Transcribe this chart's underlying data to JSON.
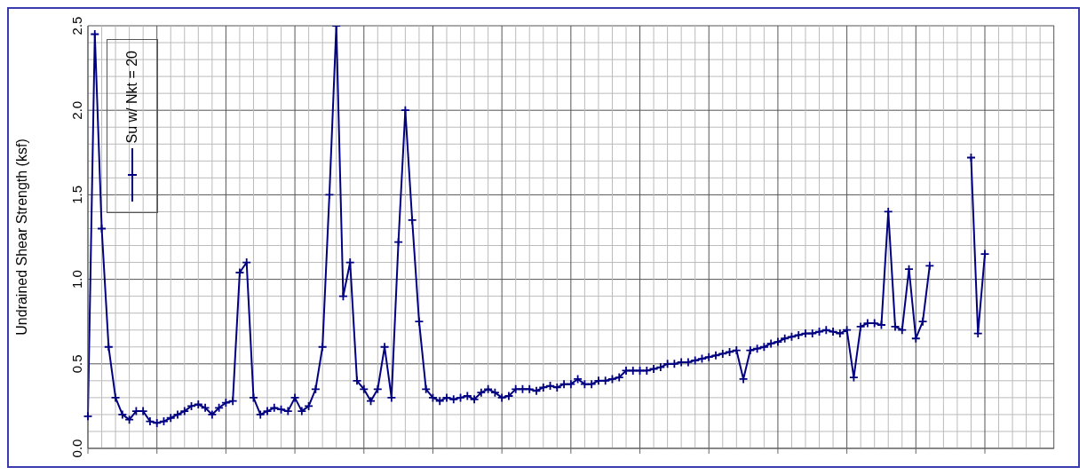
{
  "chart_data": {
    "type": "line",
    "ylabel": "Undrained Shear Strength (ksf)",
    "categories": [
      null,
      null,
      null,
      null,
      null,
      null,
      null,
      null,
      null,
      null,
      null,
      null,
      null,
      null,
      null,
      null,
      null,
      null,
      null,
      null,
      null,
      null,
      null,
      null,
      null,
      null,
      null,
      null,
      null,
      null,
      null,
      null,
      null,
      null,
      null,
      null,
      null,
      null,
      null,
      null,
      null,
      null,
      null,
      null,
      null,
      null,
      null,
      null,
      null,
      null,
      null,
      null,
      null,
      null,
      null,
      null,
      null,
      null,
      null,
      null,
      null,
      null,
      null,
      null,
      null,
      null,
      null,
      null,
      null,
      null,
      null,
      null,
      null,
      null,
      null,
      null,
      null,
      null,
      null,
      null,
      null,
      null,
      null,
      null,
      null,
      null,
      null,
      null,
      null,
      null,
      null,
      null,
      null,
      null,
      null,
      null,
      null,
      null,
      null,
      null,
      null,
      null,
      null,
      null,
      null,
      null,
      null,
      null,
      null,
      null,
      null,
      null,
      null,
      null,
      null,
      null,
      null,
      null,
      null,
      null,
      null,
      null,
      null,
      null,
      null,
      null,
      null,
      null,
      null,
      null,
      null
    ],
    "series": [
      {
        "name": "Su w/ Nkt = 20",
        "color": "#000080",
        "values": [
          0.19,
          2.45,
          1.3,
          0.6,
          0.3,
          0.2,
          0.17,
          0.22,
          0.22,
          0.16,
          0.15,
          0.16,
          0.18,
          0.2,
          0.22,
          0.25,
          0.26,
          0.24,
          0.2,
          0.24,
          0.27,
          0.28,
          1.04,
          1.1,
          0.3,
          0.2,
          0.22,
          0.24,
          0.23,
          0.22,
          0.3,
          0.22,
          0.25,
          0.35,
          0.6,
          1.5,
          2.5,
          0.9,
          1.1,
          0.4,
          0.35,
          0.28,
          0.35,
          0.6,
          0.3,
          1.22,
          2.0,
          1.35,
          0.75,
          0.35,
          0.3,
          0.28,
          0.3,
          0.29,
          0.3,
          0.31,
          0.29,
          0.33,
          0.35,
          0.33,
          0.3,
          0.31,
          0.35,
          0.35,
          0.35,
          0.34,
          0.36,
          0.37,
          0.36,
          0.38,
          0.38,
          0.41,
          0.38,
          0.38,
          0.4,
          0.4,
          0.41,
          0.42,
          0.46,
          0.46,
          0.46,
          0.46,
          0.47,
          0.48,
          0.5,
          0.5,
          0.51,
          0.51,
          0.52,
          0.53,
          0.54,
          0.55,
          0.56,
          0.57,
          0.58,
          0.41,
          0.58,
          0.59,
          0.6,
          0.62,
          0.63,
          0.65,
          0.66,
          0.67,
          0.68,
          0.68,
          0.69,
          0.7,
          0.69,
          0.68,
          0.7,
          0.42,
          0.72,
          0.74,
          0.74,
          0.73,
          1.4,
          0.72,
          0.7,
          1.06,
          0.65,
          0.75,
          1.08,
          null,
          null,
          null,
          null,
          null,
          null,
          null,
          null
        ]
      },
      {
        "color": "#000080",
        "values": [
          null,
          null,
          null,
          null,
          null,
          null,
          null,
          null,
          null,
          null,
          null,
          null,
          null,
          null,
          null,
          null,
          null,
          null,
          null,
          null,
          null,
          null,
          null,
          null,
          null,
          null,
          null,
          null,
          null,
          null,
          null,
          null,
          null,
          null,
          null,
          null,
          null,
          null,
          null,
          null,
          null,
          null,
          null,
          null,
          null,
          null,
          null,
          null,
          null,
          null,
          null,
          null,
          null,
          null,
          null,
          null,
          null,
          null,
          null,
          null,
          null,
          null,
          null,
          null,
          null,
          null,
          null,
          null,
          null,
          null,
          null,
          null,
          null,
          null,
          null,
          null,
          null,
          null,
          null,
          null,
          null,
          null,
          null,
          null,
          null,
          null,
          null,
          null,
          null,
          null,
          null,
          null,
          null,
          null,
          null,
          null,
          null,
          null,
          null,
          null,
          null,
          null,
          null,
          null,
          null,
          null,
          null,
          null,
          null,
          null,
          null,
          null,
          null,
          null,
          null,
          null,
          null,
          null,
          null,
          null,
          null,
          null,
          null,
          null,
          null,
          null,
          null,
          null,
          1.72,
          0.68,
          1.15
        ]
      }
    ],
    "ylim": [
      0,
      2.5
    ],
    "yticks": [
      {
        "value": 0,
        "label": "0.0"
      },
      {
        "value": 0.1,
        "label": null
      },
      {
        "value": 0.2,
        "label": null
      },
      {
        "value": 0.3,
        "label": null
      },
      {
        "value": 0.4,
        "label": null
      },
      {
        "value": 0.5,
        "label": "0.5"
      },
      {
        "value": 0.6,
        "label": null
      },
      {
        "value": 0.7,
        "label": null
      },
      {
        "value": 0.8,
        "label": null
      },
      {
        "value": 0.9,
        "label": null
      },
      {
        "value": 1,
        "label": "1.0"
      },
      {
        "value": 1.1,
        "label": null
      },
      {
        "value": 1.2,
        "label": null
      },
      {
        "value": 1.3,
        "label": null
      },
      {
        "value": 1.4,
        "label": null
      },
      {
        "value": 1.5,
        "label": "1.5"
      },
      {
        "value": 1.6,
        "label": null
      },
      {
        "value": 1.7,
        "label": null
      },
      {
        "value": 1.8,
        "label": null
      },
      {
        "value": 1.9,
        "label": null
      },
      {
        "value": 2,
        "label": "2.0"
      },
      {
        "value": 2.1,
        "label": null
      },
      {
        "value": 2.2,
        "label": null
      },
      {
        "value": 2.3,
        "label": null
      },
      {
        "value": 2.4,
        "label": null
      },
      {
        "value": 2.5,
        "label": "2.5"
      }
    ],
    "grid": true,
    "legend": "top left",
    "marker": "cross",
    "line_style": "solid"
  }
}
